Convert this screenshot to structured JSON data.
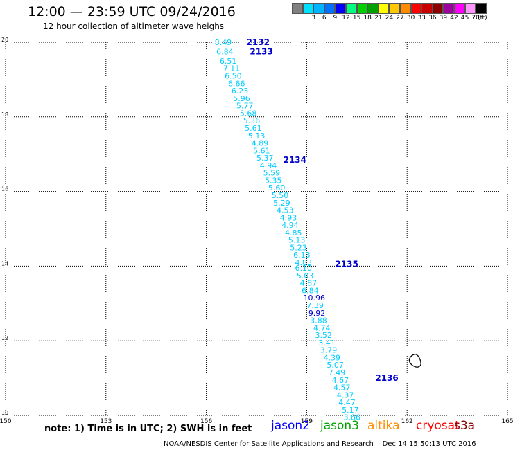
{
  "header": {
    "title": "12:00 — 23:59 UTC 09/24/2016",
    "subtitle": "12 hour collection of altimeter wave heighs"
  },
  "legend": {
    "unit_label": "(ft)",
    "entries": [
      {
        "label": "",
        "color": "#808080"
      },
      {
        "label": "3",
        "color": "#00e0ff"
      },
      {
        "label": "6",
        "color": "#00b4ff"
      },
      {
        "label": "9",
        "color": "#0070ff"
      },
      {
        "label": "12",
        "color": "#0000ff"
      },
      {
        "label": "15",
        "color": "#00ff80"
      },
      {
        "label": "18",
        "color": "#00d000"
      },
      {
        "label": "21",
        "color": "#00a000"
      },
      {
        "label": "24",
        "color": "#ffff00"
      },
      {
        "label": "27",
        "color": "#ffc800"
      },
      {
        "label": "30",
        "color": "#ff8c00"
      },
      {
        "label": "33",
        "color": "#ff0000"
      },
      {
        "label": "36",
        "color": "#c80000"
      },
      {
        "label": "39",
        "color": "#8b0000"
      },
      {
        "label": "42",
        "color": "#a000a0"
      },
      {
        "label": "45",
        "color": "#ff00ff"
      },
      {
        "label": "70",
        "color": "#ff96ff"
      },
      {
        "label": "",
        "color": "#000000"
      }
    ]
  },
  "map_data": {
    "lon_range": [
      150,
      165
    ],
    "lat_range": [
      10,
      20
    ],
    "lon_ticks": [
      "150",
      "153",
      "156",
      "159",
      "162",
      "165"
    ],
    "lat_ticks": [
      "10",
      "12",
      "14",
      "16",
      "18",
      "20"
    ],
    "grid": true,
    "color_light": "#00ccff",
    "color_dark": "#0000cc",
    "track_labels": [
      {
        "text": "2132",
        "lon": 157.2,
        "lat": 20.0
      },
      {
        "text": "2133",
        "lon": 157.3,
        "lat": 19.75
      },
      {
        "text": "2134",
        "lon": 158.3,
        "lat": 16.85
      },
      {
        "text": "2135",
        "lon": 159.85,
        "lat": 14.05
      },
      {
        "text": "2136",
        "lon": 161.05,
        "lat": 11.0
      }
    ],
    "swh_points": [
      {
        "v": "8.49",
        "lon": 156.25,
        "lat": 20.0,
        "dark": false
      },
      {
        "v": "6.84",
        "lon": 156.3,
        "lat": 19.75,
        "dark": false
      },
      {
        "v": "6.51",
        "lon": 156.4,
        "lat": 19.5,
        "dark": false
      },
      {
        "v": "7.11",
        "lon": 156.5,
        "lat": 19.3,
        "dark": false
      },
      {
        "v": "6.50",
        "lon": 156.55,
        "lat": 19.1,
        "dark": false
      },
      {
        "v": "6.66",
        "lon": 156.65,
        "lat": 18.9,
        "dark": false
      },
      {
        "v": "6.23",
        "lon": 156.75,
        "lat": 18.7,
        "dark": false
      },
      {
        "v": "5.96",
        "lon": 156.8,
        "lat": 18.5,
        "dark": false
      },
      {
        "v": "5.77",
        "lon": 156.9,
        "lat": 18.3,
        "dark": false
      },
      {
        "v": "5.68",
        "lon": 157.0,
        "lat": 18.1,
        "dark": false
      },
      {
        "v": "5.36",
        "lon": 157.1,
        "lat": 17.9,
        "dark": false
      },
      {
        "v": "5.61",
        "lon": 157.15,
        "lat": 17.7,
        "dark": false
      },
      {
        "v": "5.13",
        "lon": 157.25,
        "lat": 17.5,
        "dark": false
      },
      {
        "v": "4.89",
        "lon": 157.35,
        "lat": 17.3,
        "dark": false
      },
      {
        "v": "5.61",
        "lon": 157.4,
        "lat": 17.1,
        "dark": false
      },
      {
        "v": "5.37",
        "lon": 157.5,
        "lat": 16.9,
        "dark": false
      },
      {
        "v": "4.94",
        "lon": 157.6,
        "lat": 16.7,
        "dark": false
      },
      {
        "v": "5.59",
        "lon": 157.7,
        "lat": 16.5,
        "dark": false
      },
      {
        "v": "5.35",
        "lon": 157.75,
        "lat": 16.3,
        "dark": false
      },
      {
        "v": "5.60",
        "lon": 157.85,
        "lat": 16.1,
        "dark": false
      },
      {
        "v": "5.50",
        "lon": 157.95,
        "lat": 15.9,
        "dark": false
      },
      {
        "v": "5.29",
        "lon": 158.0,
        "lat": 15.7,
        "dark": false
      },
      {
        "v": "4.53",
        "lon": 158.1,
        "lat": 15.5,
        "dark": false
      },
      {
        "v": "4.93",
        "lon": 158.2,
        "lat": 15.3,
        "dark": false
      },
      {
        "v": "4.94",
        "lon": 158.25,
        "lat": 15.1,
        "dark": false
      },
      {
        "v": "4.85",
        "lon": 158.35,
        "lat": 14.9,
        "dark": false
      },
      {
        "v": "5.13",
        "lon": 158.45,
        "lat": 14.7,
        "dark": false
      },
      {
        "v": "5.23",
        "lon": 158.5,
        "lat": 14.5,
        "dark": false
      },
      {
        "v": "6.13",
        "lon": 158.6,
        "lat": 14.3,
        "dark": false
      },
      {
        "v": "4.83",
        "lon": 158.65,
        "lat": 14.1,
        "dark": false
      },
      {
        "v": "6.10",
        "lon": 158.65,
        "lat": 13.95,
        "dark": false
      },
      {
        "v": "5.03",
        "lon": 158.7,
        "lat": 13.75,
        "dark": false
      },
      {
        "v": "4.87",
        "lon": 158.8,
        "lat": 13.55,
        "dark": false
      },
      {
        "v": "6.84",
        "lon": 158.85,
        "lat": 13.35,
        "dark": false
      },
      {
        "v": "10.96",
        "lon": 158.9,
        "lat": 13.15,
        "dark": true
      },
      {
        "v": "7.39",
        "lon": 159.0,
        "lat": 12.95,
        "dark": false
      },
      {
        "v": "9.92",
        "lon": 159.05,
        "lat": 12.75,
        "dark": true
      },
      {
        "v": "3.88",
        "lon": 159.1,
        "lat": 12.55,
        "dark": false
      },
      {
        "v": "4.74",
        "lon": 159.2,
        "lat": 12.35,
        "dark": false
      },
      {
        "v": "3.52",
        "lon": 159.25,
        "lat": 12.15,
        "dark": false
      },
      {
        "v": "3.41",
        "lon": 159.35,
        "lat": 11.95,
        "dark": false
      },
      {
        "v": "3.79",
        "lon": 159.4,
        "lat": 11.75,
        "dark": false
      },
      {
        "v": "4.39",
        "lon": 159.5,
        "lat": 11.55,
        "dark": false
      },
      {
        "v": "5.07",
        "lon": 159.6,
        "lat": 11.35,
        "dark": false
      },
      {
        "v": "7.49",
        "lon": 159.65,
        "lat": 11.15,
        "dark": false
      },
      {
        "v": "4.67",
        "lon": 159.75,
        "lat": 10.95,
        "dark": false
      },
      {
        "v": "4.57",
        "lon": 159.8,
        "lat": 10.75,
        "dark": false
      },
      {
        "v": "4.37",
        "lon": 159.9,
        "lat": 10.55,
        "dark": false
      },
      {
        "v": "4.47",
        "lon": 159.95,
        "lat": 10.35,
        "dark": false
      },
      {
        "v": "5.17",
        "lon": 160.05,
        "lat": 10.15,
        "dark": false
      },
      {
        "v": "3.86",
        "lon": 160.1,
        "lat": 9.95,
        "dark": false
      }
    ]
  },
  "notes": {
    "text": "note:  1) Time is in UTC;  2) SWH is in feet"
  },
  "satellites": [
    {
      "name": "jason2",
      "color": "#0000ff"
    },
    {
      "name": "jason3",
      "color": "#00a000"
    },
    {
      "name": "altika",
      "color": "#ff8c00"
    },
    {
      "name": "cryosat",
      "color": "#ff0000"
    },
    {
      "name": "s3a",
      "color": "#8b0000"
    }
  ],
  "footer": {
    "credit": "NOAA/NESDIS Center for Satellite Applications and Research",
    "timestamp": "Dec 14 15:50:13 UTC 2016"
  }
}
